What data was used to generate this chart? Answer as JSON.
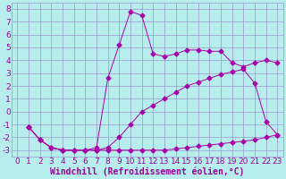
{
  "xlabel": "Windchill (Refroidissement éolien,°C)",
  "xlim": [
    -0.5,
    23.5
  ],
  "ylim": [
    -3.5,
    8.5
  ],
  "xticks": [
    0,
    1,
    2,
    3,
    4,
    5,
    6,
    7,
    8,
    9,
    10,
    11,
    12,
    13,
    14,
    15,
    16,
    17,
    18,
    19,
    20,
    21,
    22,
    23
  ],
  "yticks": [
    -3,
    -2,
    -1,
    0,
    1,
    2,
    3,
    4,
    5,
    6,
    7,
    8
  ],
  "bg_color": "#b8eded",
  "grid_color": "#9999cc",
  "line_color": "#aa00aa",
  "line1_x": [
    1,
    2,
    3,
    4,
    5,
    6,
    7,
    8,
    9,
    10,
    11,
    12,
    13,
    14,
    15,
    16,
    17,
    18,
    19,
    20,
    21,
    22,
    23
  ],
  "line1_y": [
    -1.2,
    -2.2,
    -2.8,
    -3.0,
    -3.0,
    -3.0,
    -3.0,
    -3.0,
    -3.0,
    -3.0,
    -3.0,
    -3.0,
    -3.0,
    -2.9,
    -2.8,
    -2.7,
    -2.6,
    -2.5,
    -2.4,
    -2.3,
    -2.2,
    -2.0,
    -1.8
  ],
  "line2_x": [
    1,
    2,
    3,
    4,
    5,
    6,
    7,
    8,
    9,
    10,
    11,
    12,
    13,
    14,
    15,
    16,
    17,
    18,
    19,
    20,
    21,
    22,
    23
  ],
  "line2_y": [
    -1.2,
    -2.2,
    -2.8,
    -3.0,
    -3.0,
    -3.0,
    -3.0,
    -2.8,
    -2.0,
    -1.0,
    0.0,
    0.5,
    1.0,
    1.5,
    2.0,
    2.3,
    2.6,
    2.9,
    3.1,
    3.3,
    2.2,
    -0.8,
    -1.8
  ],
  "line3_x": [
    1,
    2,
    3,
    4,
    5,
    6,
    7,
    8,
    9,
    10,
    11,
    12,
    13,
    14,
    15,
    16,
    17,
    18,
    19,
    20,
    21,
    22,
    23
  ],
  "line3_y": [
    -1.2,
    -2.2,
    -2.8,
    -3.0,
    -3.0,
    -3.0,
    -2.8,
    2.6,
    5.2,
    7.8,
    7.5,
    4.5,
    4.3,
    4.5,
    4.8,
    4.8,
    4.7,
    4.7,
    3.8,
    3.5,
    3.8,
    4.0,
    3.8
  ],
  "font_color": "#990099",
  "font_size": 6.5,
  "marker": "D",
  "marker_size": 2.5
}
